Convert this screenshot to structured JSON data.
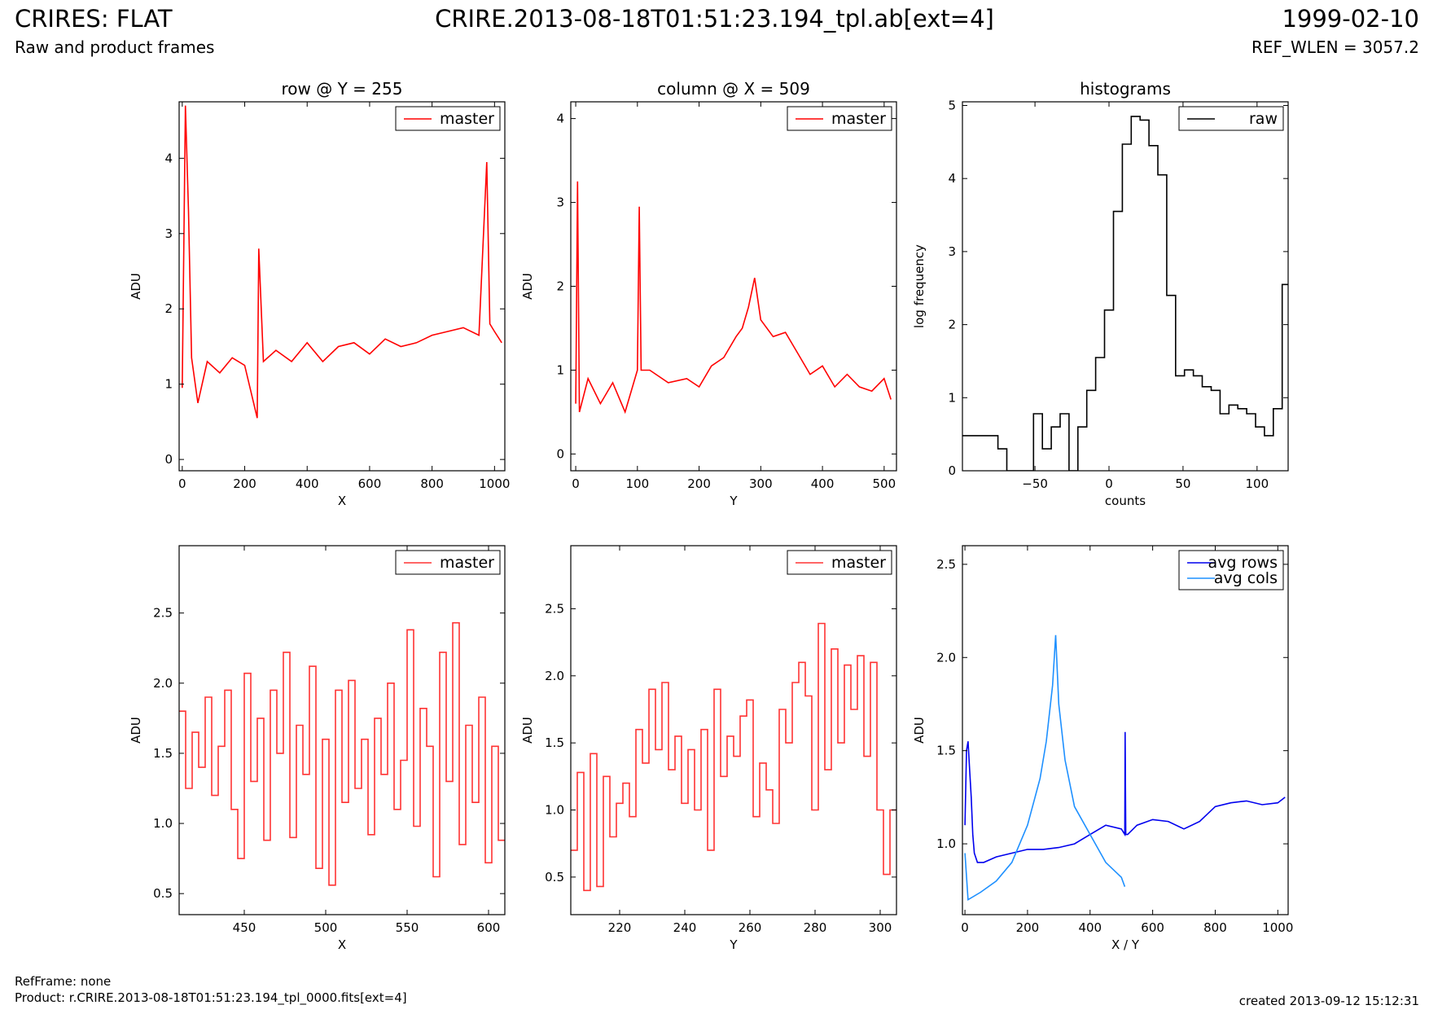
{
  "header": {
    "title": "CRIRES: FLAT",
    "subtitle": "Raw and product frames",
    "file": "CRIRE.2013-08-18T01:51:23.194_tpl.ab[ext=4]",
    "date": "1999-02-10",
    "ref_wlen": "REF_WLEN = 3057.2"
  },
  "footer": {
    "refframe": "RefFrame: none",
    "product": "Product: r.CRIRE.2013-08-18T01:51:23.194_tpl_0000.fits[ext=4]",
    "created": "created 2013-09-12 15:12:31"
  },
  "chart_data": [
    {
      "id": "row-full",
      "type": "line",
      "title": "row @ Y = 255",
      "xlabel": "X",
      "ylabel": "ADU",
      "xlim": [
        -10,
        1033
      ],
      "ylim": [
        -0.15,
        4.75
      ],
      "xticks": [
        0,
        200,
        400,
        600,
        800,
        1000
      ],
      "yticks": [
        0,
        1,
        2,
        3,
        4
      ],
      "legend": "top-right",
      "series": [
        {
          "name": "master",
          "color": "#ff0000",
          "x": [
            0,
            10,
            20,
            30,
            50,
            80,
            120,
            160,
            200,
            240,
            245,
            260,
            300,
            350,
            400,
            450,
            500,
            550,
            600,
            650,
            700,
            750,
            800,
            850,
            900,
            950,
            975,
            985,
            1000,
            1023
          ],
          "y": [
            0.95,
            4.7,
            3.3,
            1.35,
            0.75,
            1.3,
            1.15,
            1.35,
            1.25,
            0.55,
            2.8,
            1.3,
            1.45,
            1.3,
            1.55,
            1.3,
            1.5,
            1.55,
            1.4,
            1.6,
            1.5,
            1.55,
            1.65,
            1.7,
            1.75,
            1.65,
            3.95,
            1.8,
            1.7,
            1.55
          ]
        }
      ]
    },
    {
      "id": "col-full",
      "type": "line",
      "title": "column @ X = 509",
      "xlabel": "Y",
      "ylabel": "ADU",
      "xlim": [
        -8,
        520
      ],
      "ylim": [
        -0.2,
        4.2
      ],
      "xticks": [
        0,
        100,
        200,
        300,
        400,
        500
      ],
      "yticks": [
        0,
        1,
        2,
        3,
        4
      ],
      "legend": "top-right",
      "series": [
        {
          "name": "master",
          "color": "#ff0000",
          "x": [
            0,
            3,
            6,
            20,
            40,
            60,
            80,
            100,
            103,
            106,
            120,
            150,
            180,
            200,
            220,
            240,
            260,
            270,
            280,
            290,
            300,
            320,
            340,
            360,
            380,
            400,
            420,
            440,
            460,
            480,
            500,
            511
          ],
          "y": [
            0.6,
            3.25,
            0.5,
            0.9,
            0.6,
            0.85,
            0.5,
            1.0,
            2.95,
            1.0,
            1.0,
            0.85,
            0.9,
            0.8,
            1.05,
            1.15,
            1.4,
            1.5,
            1.75,
            2.1,
            1.6,
            1.4,
            1.45,
            1.2,
            0.95,
            1.05,
            0.8,
            0.95,
            0.8,
            0.75,
            0.9,
            0.65
          ]
        }
      ]
    },
    {
      "id": "histogram",
      "type": "line",
      "title": "histograms",
      "xlabel": "counts",
      "ylabel": "log frequency",
      "xlim": [
        -99,
        121
      ],
      "ylim": [
        0,
        5.05
      ],
      "xticks": [
        -50,
        0,
        50,
        100
      ],
      "yticks": [
        0,
        1,
        2,
        3,
        4,
        5
      ],
      "legend": "top-right",
      "series": [
        {
          "name": "raw",
          "color": "#000000",
          "step": true,
          "x": [
            -99,
            -93,
            -87,
            -81,
            -75,
            -69,
            -63,
            -57,
            -51,
            -45,
            -39,
            -33,
            -27,
            -21,
            -15,
            -9,
            -3,
            3,
            9,
            15,
            21,
            27,
            33,
            39,
            45,
            51,
            57,
            63,
            69,
            75,
            81,
            87,
            93,
            99,
            105,
            111,
            117
          ],
          "y": [
            0.48,
            0.48,
            0.48,
            0.48,
            0.3,
            0.0,
            0.0,
            0.0,
            0.78,
            0.3,
            0.6,
            0.78,
            0.0,
            0.6,
            1.1,
            1.55,
            2.2,
            3.55,
            4.47,
            4.85,
            4.8,
            4.45,
            4.05,
            2.4,
            1.3,
            1.38,
            1.3,
            1.15,
            1.1,
            0.78,
            0.9,
            0.85,
            0.78,
            0.6,
            0.48,
            0.85,
            2.55
          ]
        }
      ]
    },
    {
      "id": "row-zoom",
      "type": "line",
      "title": "",
      "xlabel": "X",
      "ylabel": "ADU",
      "xlim": [
        410,
        610
      ],
      "ylim": [
        0.35,
        2.98
      ],
      "xticks": [
        450,
        500,
        550,
        600
      ],
      "yticks": [
        0.5,
        1.0,
        1.5,
        2.0,
        2.5
      ],
      "legend": "top-right",
      "series": [
        {
          "name": "master",
          "color": "#ff3333",
          "step": true,
          "x": [
            410,
            414,
            418,
            422,
            426,
            430,
            434,
            438,
            442,
            446,
            450,
            454,
            458,
            462,
            466,
            470,
            474,
            478,
            482,
            486,
            490,
            494,
            498,
            502,
            506,
            510,
            514,
            518,
            522,
            526,
            530,
            534,
            538,
            542,
            546,
            550,
            554,
            558,
            562,
            566,
            570,
            574,
            578,
            582,
            586,
            590,
            594,
            598,
            602,
            606
          ],
          "y": [
            1.8,
            1.25,
            1.65,
            1.4,
            1.9,
            1.2,
            1.55,
            1.95,
            1.1,
            0.75,
            2.07,
            1.3,
            1.75,
            0.88,
            1.95,
            1.5,
            2.22,
            0.9,
            1.7,
            1.35,
            2.12,
            0.68,
            1.6,
            0.56,
            1.95,
            1.15,
            2.02,
            1.25,
            1.6,
            0.92,
            1.75,
            1.35,
            2.0,
            1.1,
            1.45,
            2.38,
            0.98,
            1.82,
            1.55,
            0.62,
            2.22,
            1.3,
            2.43,
            0.85,
            1.7,
            1.15,
            1.9,
            0.72,
            1.55,
            0.88
          ]
        }
      ]
    },
    {
      "id": "col-zoom",
      "type": "line",
      "title": "",
      "xlabel": "Y",
      "ylabel": "ADU",
      "xlim": [
        205,
        305
      ],
      "ylim": [
        0.22,
        2.97
      ],
      "xticks": [
        220,
        240,
        260,
        280,
        300
      ],
      "yticks": [
        0.5,
        1.0,
        1.5,
        2.0,
        2.5
      ],
      "legend": "top-right",
      "series": [
        {
          "name": "master",
          "color": "#ff3333",
          "step": true,
          "x": [
            205,
            207,
            209,
            211,
            213,
            215,
            217,
            219,
            221,
            223,
            225,
            227,
            229,
            231,
            233,
            235,
            237,
            239,
            241,
            243,
            245,
            247,
            249,
            251,
            253,
            255,
            257,
            259,
            261,
            263,
            265,
            267,
            269,
            271,
            273,
            275,
            277,
            279,
            281,
            283,
            285,
            287,
            289,
            291,
            293,
            295,
            297,
            299,
            301,
            303
          ],
          "y": [
            0.7,
            1.28,
            0.4,
            1.42,
            0.43,
            1.25,
            0.8,
            1.05,
            1.2,
            0.95,
            1.6,
            1.35,
            1.9,
            1.45,
            1.95,
            1.3,
            1.55,
            1.05,
            1.45,
            1.0,
            1.6,
            0.7,
            1.9,
            1.25,
            1.55,
            1.4,
            1.7,
            1.82,
            0.95,
            1.35,
            1.15,
            0.9,
            1.75,
            1.5,
            1.95,
            2.1,
            1.85,
            1.0,
            2.39,
            1.3,
            2.2,
            1.5,
            2.08,
            1.75,
            2.15,
            1.4,
            2.1,
            1.0,
            0.52,
            1.0
          ]
        }
      ]
    },
    {
      "id": "averages",
      "type": "line",
      "title": "",
      "xlabel": "X / Y",
      "ylabel": "ADU",
      "xlim": [
        -8,
        1033
      ],
      "ylim": [
        0.62,
        2.6
      ],
      "xticks": [
        0,
        200,
        400,
        600,
        800,
        1000
      ],
      "yticks": [
        1.0,
        1.5,
        2.0,
        2.5
      ],
      "legend": "top-right",
      "series": [
        {
          "name": "avg rows",
          "color": "#0000ee",
          "x": [
            0,
            5,
            10,
            15,
            20,
            25,
            30,
            40,
            60,
            100,
            150,
            200,
            250,
            300,
            350,
            400,
            450,
            500,
            511,
            512,
            514,
            520,
            550,
            600,
            650,
            700,
            750,
            800,
            850,
            900,
            950,
            1000,
            1023
          ],
          "y": [
            1.1,
            1.5,
            1.55,
            1.4,
            1.25,
            1.05,
            0.95,
            0.9,
            0.9,
            0.93,
            0.95,
            0.97,
            0.97,
            0.98,
            1.0,
            1.05,
            1.1,
            1.08,
            1.05,
            1.6,
            1.05,
            1.05,
            1.1,
            1.13,
            1.12,
            1.08,
            1.12,
            1.2,
            1.22,
            1.23,
            1.21,
            1.22,
            1.25
          ]
        },
        {
          "name": "avg cols",
          "color": "#1e90ff",
          "x": [
            0,
            10,
            50,
            100,
            150,
            200,
            240,
            260,
            280,
            290,
            300,
            320,
            350,
            400,
            450,
            500,
            511
          ],
          "y": [
            0.95,
            0.7,
            0.74,
            0.8,
            0.9,
            1.1,
            1.35,
            1.55,
            1.85,
            2.12,
            1.75,
            1.45,
            1.2,
            1.05,
            0.9,
            0.82,
            0.77
          ]
        }
      ]
    }
  ]
}
